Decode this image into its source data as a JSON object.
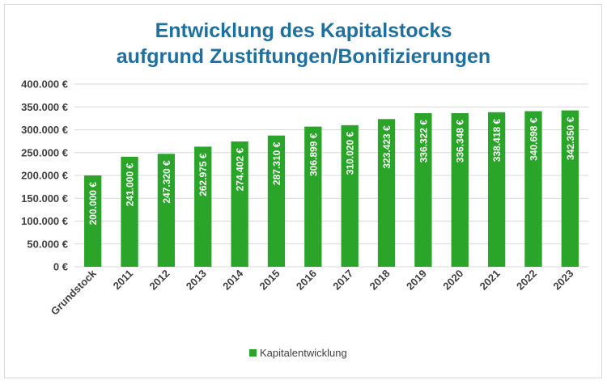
{
  "chart_data": {
    "type": "bar",
    "title_lines": [
      "Entwicklung des Kapitalstocks",
      "aufgrund Zustiftungen/Bonifizierungen"
    ],
    "categories": [
      "Grundstock",
      "2011",
      "2012",
      "2013",
      "2014",
      "2015",
      "2016",
      "2017",
      "2018",
      "2019",
      "2020",
      "2021",
      "2022",
      "2023"
    ],
    "series": [
      {
        "name": "Kapitalentwicklung",
        "color": "#2aa52a",
        "values": [
          200000,
          241000,
          247320,
          262975,
          274402,
          287310,
          306899,
          310020,
          323423,
          336322,
          336348,
          338418,
          340698,
          342350
        ],
        "labels": [
          "200.000 €",
          "241.000 €",
          "247.320 €",
          "262.975 €",
          "274.402 €",
          "287.310 €",
          "306.899 €",
          "310.020 €",
          "323.423 €",
          "336.322 €",
          "336.348 €",
          "338.418 €",
          "340.698 €",
          "342.350 €"
        ]
      }
    ],
    "ylim": [
      0,
      400000
    ],
    "yticks": [
      "0 €",
      "50.000 €",
      "100.000 €",
      "150.000 €",
      "200.000 €",
      "250.000 €",
      "300.000 €",
      "350.000 €",
      "400.000 €"
    ],
    "ytick_values": [
      0,
      50000,
      100000,
      150000,
      200000,
      250000,
      300000,
      350000,
      400000
    ],
    "grid": true,
    "legend_position": "bottom",
    "title_color": "#1f6f9f"
  }
}
